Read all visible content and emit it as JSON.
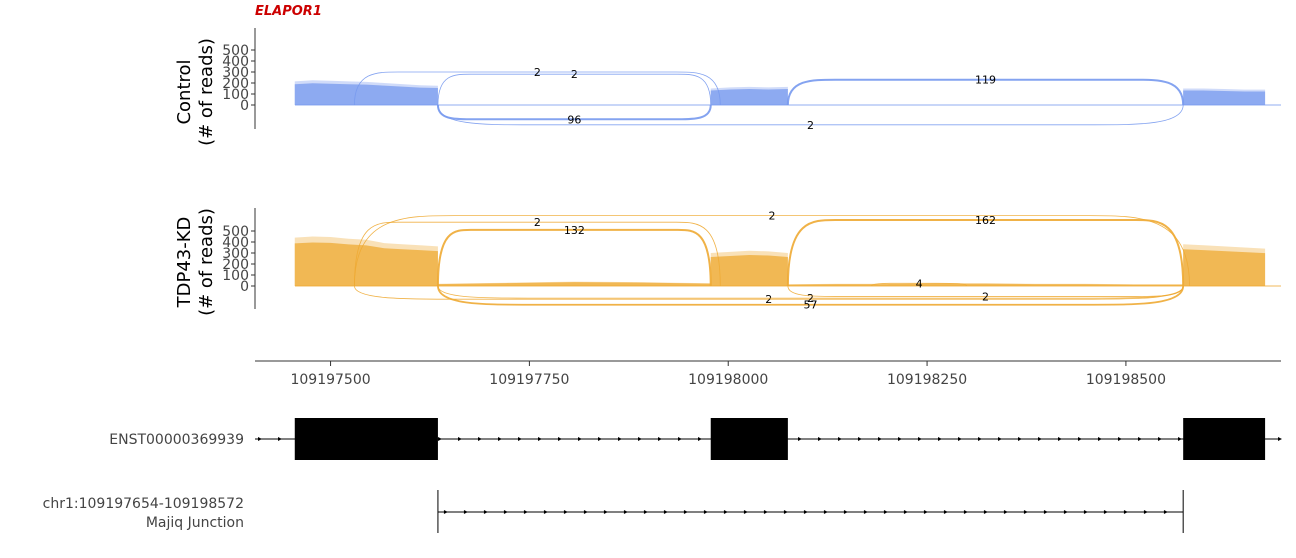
{
  "gene": {
    "name": "ELAPOR1",
    "color": "#cc0000"
  },
  "chart_data": {
    "type": "area",
    "xlim": [
      109197405,
      109198695
    ],
    "xticks": [
      "109197500",
      "109197750",
      "109198000",
      "109198250",
      "109198500"
    ],
    "tracks": [
      {
        "label_line1": "Control",
        "label_line2": "(# of reads)",
        "color": "#7799ee",
        "yticks": [
          "500",
          "400",
          "300",
          "200",
          "100",
          "0"
        ],
        "ylim": [
          -200,
          600
        ],
        "coverage": [
          {
            "start": 109197455,
            "end": 109197635,
            "values": [
              215,
              225,
              220,
              215,
              210,
              200,
              190,
              180,
              175
            ]
          },
          {
            "start": 109197978,
            "end": 109198075,
            "values": [
              150,
              160,
              165,
              160,
              165
            ]
          },
          {
            "start": 109198572,
            "end": 109198675,
            "values": [
              150,
              150,
              145,
              140,
              140
            ]
          }
        ],
        "junctions": [
          {
            "start": 109197635,
            "end": 109197978,
            "count": "2",
            "side": "above",
            "height": 280
          },
          {
            "start": 109197530,
            "end": 109197990,
            "count": "2",
            "side": "above",
            "height": 300
          },
          {
            "start": 109198075,
            "end": 109198572,
            "count": "119",
            "side": "above",
            "height": 230
          },
          {
            "start": 109197635,
            "end": 109197978,
            "count": "96",
            "side": "below",
            "height": 130
          },
          {
            "start": 109197635,
            "end": 109198572,
            "count": "2",
            "side": "below",
            "height": 180
          }
        ]
      },
      {
        "label_line1": "TDP43-KD",
        "label_line2": "(# of reads)",
        "color": "#eeaa33",
        "yticks": [
          "500",
          "400",
          "300",
          "200",
          "100",
          "0"
        ],
        "ylim": [
          -200,
          650
        ],
        "coverage": [
          {
            "start": 109197455,
            "end": 109197635,
            "values": [
              440,
              450,
              445,
              430,
              420,
              390,
              380,
              370,
              360
            ]
          },
          {
            "start": 109197635,
            "end": 109197978,
            "values": [
              20,
              25,
              30,
              35,
              40,
              38,
              35,
              30,
              25
            ]
          },
          {
            "start": 109197978,
            "end": 109198075,
            "values": [
              300,
              310,
              320,
              315,
              300
            ]
          },
          {
            "start": 109198075,
            "end": 109198572,
            "values": [
              15,
              20,
              20,
              25,
              25,
              20,
              20,
              15,
              15
            ]
          },
          {
            "start": 109198572,
            "end": 109198675,
            "values": [
              380,
              370,
              360,
              350,
              340
            ]
          }
        ],
        "junctions": [
          {
            "start": 109197530,
            "end": 109197990,
            "count": "2",
            "side": "above",
            "height": 580
          },
          {
            "start": 109197530,
            "end": 109198580,
            "count": "2",
            "side": "above",
            "height": 640
          },
          {
            "start": 109197635,
            "end": 109197978,
            "count": "132",
            "side": "above",
            "height": 510
          },
          {
            "start": 109198075,
            "end": 109198572,
            "count": "162",
            "side": "above",
            "height": 600
          },
          {
            "start": 109198180,
            "end": 109198300,
            "count": "4",
            "side": "above",
            "height": 25
          },
          {
            "start": 109197530,
            "end": 109198572,
            "count": "2",
            "side": "below",
            "height": 120
          },
          {
            "start": 109197635,
            "end": 109198572,
            "count": "2",
            "side": "below",
            "height": 110
          },
          {
            "start": 109198075,
            "end": 109198572,
            "count": "2",
            "side": "below",
            "height": 95
          },
          {
            "start": 109197635,
            "end": 109198572,
            "count": "57",
            "side": "below",
            "height": 170
          }
        ]
      }
    ],
    "transcript": {
      "name": "ENST00000369939",
      "exons": [
        {
          "start": 109197455,
          "end": 109197635
        },
        {
          "start": 109197978,
          "end": 109198075
        },
        {
          "start": 109198572,
          "end": 109198675
        }
      ]
    },
    "junction_track": {
      "line1": "chr1:109197654-109198572",
      "line2": "Majiq Junction",
      "start": 109197635,
      "end": 109198572
    }
  }
}
